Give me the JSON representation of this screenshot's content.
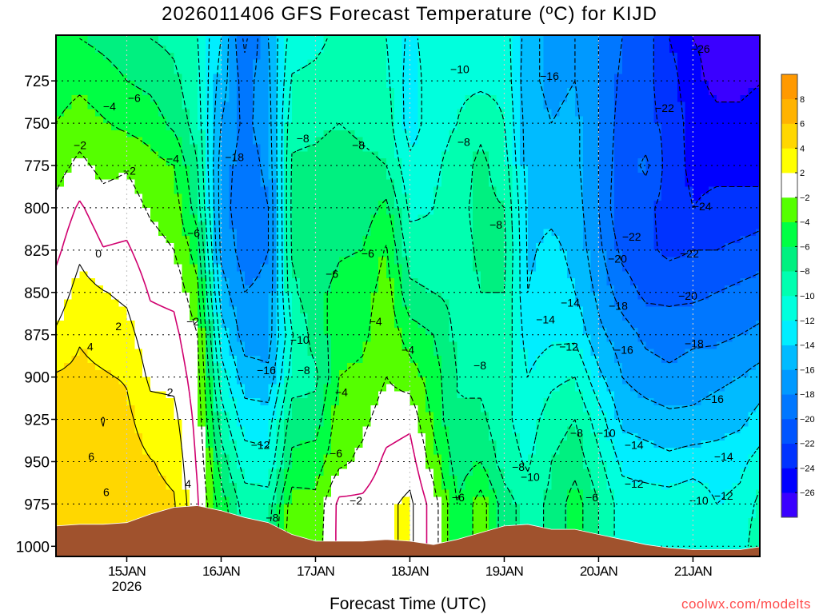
{
  "chart_data": {
    "type": "heatmap",
    "title": "2026011406 GFS Forecast Temperature (ºC) for KIJD",
    "xlabel": "Forecast Time (UTC)",
    "ylabel": "",
    "credit": "coolwx.com/modelts",
    "x_units": "hours since 14JAN2026 06Z",
    "xlim": [
      0,
      179
    ],
    "ylim": [
      698,
      1006
    ],
    "y_axis": "pressure (hPa), increasing downward",
    "grid": true,
    "xticks": [
      {
        "hour": 18,
        "label": "15JAN",
        "sublabel": "2026"
      },
      {
        "hour": 42,
        "label": "16JAN"
      },
      {
        "hour": 66,
        "label": "17JAN"
      },
      {
        "hour": 90,
        "label": "18JAN"
      },
      {
        "hour": 114,
        "label": "19JAN"
      },
      {
        "hour": 138,
        "label": "20JAN"
      },
      {
        "hour": 162,
        "label": "21JAN"
      }
    ],
    "yticks": [
      725,
      750,
      775,
      800,
      825,
      850,
      875,
      900,
      925,
      950,
      975,
      1000
    ],
    "levels_hPa": [
      700,
      725,
      750,
      775,
      800,
      825,
      850,
      875,
      900,
      925,
      950,
      975,
      1000
    ],
    "times_hours": [
      0,
      6,
      12,
      18,
      24,
      30,
      36,
      42,
      48,
      54,
      60,
      66,
      72,
      78,
      84,
      90,
      96,
      102,
      108,
      114,
      120,
      126,
      132,
      138,
      144,
      150,
      156,
      162,
      168,
      174,
      180
    ],
    "temperature_C": [
      [
        -5.5,
        -5,
        -4,
        -2.8,
        -1.5,
        -0.5,
        0.8,
        2.3,
        4.2,
        5,
        5,
        5,
        5
      ],
      [
        -6,
        -4.5,
        -3,
        -1.5,
        0.3,
        1.6,
        2.8,
        3.8,
        4.5,
        5,
        5.5,
        5.5,
        5.5
      ],
      [
        -6.5,
        -5.2,
        -3.8,
        -2.6,
        -1.2,
        0.1,
        2.1,
        3.1,
        4.2,
        6.1,
        5.5,
        5.8,
        5.5
      ],
      [
        -7,
        -6,
        -4.5,
        -2.2,
        -1,
        0.3,
        1.6,
        2.7,
        3.8,
        4.5,
        5,
        5.2,
        5
      ],
      [
        -8,
        -6.5,
        -5,
        -3.3,
        -2.3,
        -1.2,
        -0.2,
        0.8,
        1.6,
        2.8,
        4.1,
        4.5,
        4.5
      ],
      [
        -8.5,
        -7.5,
        -6.5,
        -4,
        -3,
        -2,
        -0.5,
        0.6,
        1.5,
        2.6,
        3.5,
        4.2,
        4.2
      ],
      [
        -10,
        -9.5,
        -9,
        -8,
        -7,
        -5,
        -3.5,
        -2,
        -1.2,
        -0.7,
        -0.3,
        0.2,
        0.2
      ],
      [
        -14,
        -15,
        -16,
        -17,
        -17,
        -16.5,
        -15,
        -13,
        -11,
        -9,
        -7,
        -5,
        -4
      ],
      [
        -20.5,
        -19,
        -18.5,
        -19,
        -19.5,
        -19,
        -18,
        -17,
        -15,
        -13,
        -11,
        -9,
        -8
      ],
      [
        -16,
        -16.5,
        -17,
        -17.5,
        -18,
        -18,
        -17.5,
        -17,
        -15.5,
        -13,
        -11.5,
        -9,
        -8
      ],
      [
        -11,
        -9.8,
        -8.5,
        -7.8,
        -7.6,
        -7.8,
        -8.5,
        -10.2,
        -9,
        -7,
        -5.5,
        -3,
        -2.5
      ],
      [
        -10.5,
        -9.5,
        -8.5,
        -7.5,
        -7,
        -7,
        -6.5,
        -7,
        -8.5,
        -7,
        -5,
        -3.5,
        -3
      ],
      [
        -9.5,
        -9,
        -8,
        -7,
        -6.5,
        -6.2,
        -5.5,
        -5,
        -4,
        -3,
        -2.5,
        0.5,
        0.5
      ],
      [
        -10,
        -9.5,
        -8.5,
        -7.5,
        -7,
        -6,
        -5,
        -4.5,
        -3.5,
        -2.5,
        -1.5,
        0.5,
        0.5
      ],
      [
        -10,
        -9.5,
        -9,
        -8,
        -5.5,
        -3.8,
        -3,
        -2.5,
        -2,
        -1,
        0.5,
        1.5,
        1.5
      ],
      [
        -12.5,
        -13,
        -13,
        -11.5,
        -10.5,
        -9,
        -7.5,
        -5,
        -3,
        -0.5,
        1,
        2.5,
        2.5
      ],
      [
        -11,
        -11,
        -11,
        -10.5,
        -10,
        -9.5,
        -8,
        -6,
        -5,
        -4.5,
        -3,
        -1,
        -1
      ],
      [
        -10.5,
        -10.5,
        -10,
        -9,
        -8.5,
        -8.5,
        -8.5,
        -8.5,
        -8,
        -8,
        -7,
        -6,
        -6
      ],
      [
        -11,
        -10.5,
        -8.5,
        -7.5,
        -7.5,
        -7.8,
        -8,
        -8.5,
        -8.5,
        -7.5,
        -6,
        -3,
        -3
      ],
      [
        -11,
        -10.5,
        -10,
        -9,
        -8,
        -7.5,
        -8,
        -8.5,
        -9,
        -9.5,
        -9,
        -7,
        -7
      ],
      [
        -15,
        -15.5,
        -15,
        -15,
        -14.5,
        -14.3,
        -14,
        -13,
        -12,
        -11,
        -10.3,
        -9,
        -9
      ],
      [
        -17,
        -16.5,
        -16,
        -15.5,
        -14.5,
        -13.5,
        -13,
        -12.5,
        -10.5,
        -9,
        -8,
        -7.5,
        -7.5
      ],
      [
        -16,
        -16,
        -15.5,
        -15.5,
        -15,
        -14.5,
        -14,
        -12.5,
        -10,
        -8,
        -6.8,
        -5,
        -5
      ],
      [
        -18,
        -18,
        -18,
        -18,
        -18,
        -17.5,
        -16.5,
        -15.5,
        -13.5,
        -11,
        -9.5,
        -8,
        -8
      ],
      [
        -20,
        -20.5,
        -21,
        -21.5,
        -22,
        -20.5,
        -19,
        -17,
        -16,
        -14.5,
        -12.5,
        -11,
        -11
      ],
      [
        -21,
        -21.5,
        -21.5,
        -19.5,
        -21.5,
        -21.5,
        -20.5,
        -18.5,
        -17,
        -15,
        -13,
        -11,
        -11
      ],
      [
        -24,
        -23,
        -22.5,
        -23,
        -22.8,
        -22.5,
        -20.5,
        -19,
        -17.5,
        -15.5,
        -13.5,
        -11,
        -11
      ],
      [
        -26,
        -25.5,
        -25,
        -24.5,
        -24,
        -22,
        -20.5,
        -18.5,
        -17,
        -15.5,
        -13,
        -10.5,
        -10.5
      ],
      [
        -26.5,
        -26.5,
        -25.5,
        -24.5,
        -23.5,
        -22,
        -20,
        -18.5,
        -16.5,
        -15,
        -13,
        -12,
        -12
      ],
      [
        -27,
        -26.5,
        -25.5,
        -24.5,
        -23.5,
        -21.5,
        -19.5,
        -18,
        -16,
        -14.5,
        -12.5,
        -11.5,
        -11
      ],
      [
        -27,
        -26,
        -25,
        -25,
        -23,
        -21,
        -19,
        -17.5,
        -15,
        -13,
        -11,
        -9,
        -8
      ]
    ],
    "surface_pressure_hPa": [
      988,
      987,
      987,
      986,
      981,
      977,
      976,
      979,
      983,
      986,
      993,
      997,
      997,
      997,
      996,
      997,
      999,
      996,
      992,
      988,
      987,
      990,
      990,
      993,
      996,
      999,
      1001,
      1002,
      1002,
      1002,
      1000
    ],
    "terrain_color": "#a0522d",
    "contour_levels": [
      -26,
      -24,
      -22,
      -20,
      -18,
      -16,
      -14,
      -12,
      -10,
      -8,
      -6,
      -4,
      -2,
      0,
      2,
      4,
      6,
      8
    ],
    "zero_line_color": "#d0006f",
    "colorbar": {
      "boundaries": [
        -26,
        -24,
        -22,
        -20,
        -18,
        -16,
        -14,
        -12,
        -10,
        -8,
        -6,
        -4,
        -2,
        2,
        4,
        6,
        8
      ],
      "labels": [
        "-26",
        "-24",
        "-22",
        "-20",
        "-18",
        "-16",
        "-14",
        "-12",
        "-10",
        "-8",
        "-6",
        "-4",
        "-2",
        "2",
        "4",
        "6",
        "8"
      ],
      "colors": [
        "#3a00ff",
        "#0000ff",
        "#0033ff",
        "#0055ff",
        "#0077ff",
        "#0099ff",
        "#00bbff",
        "#00eeff",
        "#00ffdd",
        "#00ffb0",
        "#00f080",
        "#00ff44",
        "#55ff00",
        "#ffffff",
        "#ffff00",
        "#ffd700",
        "#ffb300",
        "#ff9900"
      ]
    },
    "contour_labels": [
      {
        "text": "-6",
        "hour": 19.9,
        "p": 735
      },
      {
        "text": "-4",
        "hour": 13.6,
        "p": 740
      },
      {
        "text": "-2",
        "hour": 6.1,
        "p": 763
      },
      {
        "text": "-2",
        "hour": 18.7,
        "p": 778
      },
      {
        "text": "-4",
        "hour": 29.7,
        "p": 771
      },
      {
        "text": "-6",
        "hour": 35,
        "p": 815
      },
      {
        "text": "0",
        "hour": 10.8,
        "p": 827
      },
      {
        "text": "2",
        "hour": 15.9,
        "p": 870
      },
      {
        "text": "4",
        "hour": 8.7,
        "p": 882
      },
      {
        "text": "-2",
        "hour": 34.8,
        "p": 867
      },
      {
        "text": "2",
        "hour": 29,
        "p": 909
      },
      {
        "text": "6",
        "hour": 9,
        "p": 947
      },
      {
        "text": "6",
        "hour": 12.8,
        "p": 968
      },
      {
        "text": "4",
        "hour": 33.6,
        "p": 963
      },
      {
        "text": "-18",
        "hour": 45.4,
        "p": 770
      },
      {
        "text": "-16",
        "hour": 53.5,
        "p": 896
      },
      {
        "text": "-12",
        "hour": 52,
        "p": 940
      },
      {
        "text": "-8",
        "hour": 55,
        "p": 983
      },
      {
        "text": "-10",
        "hour": 62,
        "p": 878
      },
      {
        "text": "-8",
        "hour": 63,
        "p": 896
      },
      {
        "text": "-8",
        "hour": 62.8,
        "p": 759
      },
      {
        "text": "-8",
        "hour": 76.9,
        "p": 763
      },
      {
        "text": "-6",
        "hour": 70.2,
        "p": 839
      },
      {
        "text": "-6",
        "hour": 71.2,
        "p": 945
      },
      {
        "text": "-6",
        "hour": 79.3,
        "p": 827
      },
      {
        "text": "-4",
        "hour": 81.3,
        "p": 867
      },
      {
        "text": "-4",
        "hour": 72.6,
        "p": 909
      },
      {
        "text": "-4",
        "hour": 89.5,
        "p": 884
      },
      {
        "text": "-2",
        "hour": 76.3,
        "p": 973
      },
      {
        "text": "-10",
        "hour": 102.7,
        "p": 718
      },
      {
        "text": "-8",
        "hour": 103.7,
        "p": 761
      },
      {
        "text": "-8",
        "hour": 111.9,
        "p": 810
      },
      {
        "text": "-8",
        "hour": 107.8,
        "p": 893
      },
      {
        "text": "-8",
        "hour": 117.6,
        "p": 953
      },
      {
        "text": "-6",
        "hour": 102.3,
        "p": 971
      },
      {
        "text": "-10",
        "hour": 120.6,
        "p": 959
      },
      {
        "text": "-16",
        "hour": 125.5,
        "p": 722
      },
      {
        "text": "-14",
        "hour": 124.5,
        "p": 866
      },
      {
        "text": "-14",
        "hour": 130.8,
        "p": 856
      },
      {
        "text": "-12",
        "hour": 130.4,
        "p": 882
      },
      {
        "text": "-8",
        "hour": 132.4,
        "p": 933
      },
      {
        "text": "-10",
        "hour": 139.9,
        "p": 933
      },
      {
        "text": "-6",
        "hour": 136.3,
        "p": 971
      },
      {
        "text": "-22",
        "hour": 154.8,
        "p": 741
      },
      {
        "text": "-26",
        "hour": 163.9,
        "p": 706
      },
      {
        "text": "-24",
        "hour": 164.3,
        "p": 799
      },
      {
        "text": "-22",
        "hour": 146.4,
        "p": 817
      },
      {
        "text": "-22",
        "hour": 161.1,
        "p": 827
      },
      {
        "text": "-20",
        "hour": 142.8,
        "p": 830
      },
      {
        "text": "-20",
        "hour": 160.7,
        "p": 852
      },
      {
        "text": "-18",
        "hour": 143,
        "p": 858
      },
      {
        "text": "-18",
        "hour": 162.3,
        "p": 880
      },
      {
        "text": "-16",
        "hour": 144.4,
        "p": 884
      },
      {
        "text": "-16",
        "hour": 167.4,
        "p": 913
      },
      {
        "text": "-14",
        "hour": 147,
        "p": 940
      },
      {
        "text": "-14",
        "hour": 169.8,
        "p": 947
      },
      {
        "text": "-12",
        "hour": 147,
        "p": 963
      },
      {
        "text": "-12",
        "hour": 169.8,
        "p": 970
      },
      {
        "text": "-10",
        "hour": 163.5,
        "p": 973
      }
    ]
  }
}
